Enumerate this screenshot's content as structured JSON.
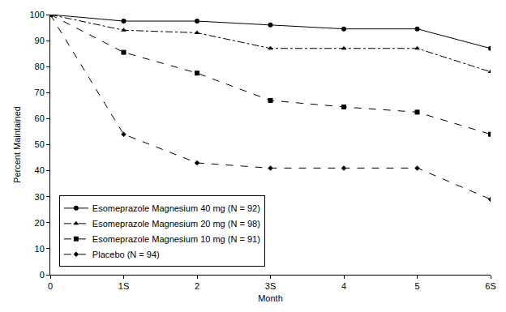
{
  "chart_data": {
    "type": "line",
    "x_label": "Month",
    "y_label": "Percent Maintained",
    "x": [
      0,
      1,
      2,
      3,
      4,
      5,
      6
    ],
    "xlim": [
      0,
      6
    ],
    "xticks": [
      0,
      {
        "value": 1,
        "label": "1S"
      },
      2,
      {
        "value": 3,
        "label": "3S"
      },
      4,
      5,
      {
        "value": 6,
        "label": "6S"
      }
    ],
    "ylim": [
      0,
      100
    ],
    "yticks": [
      0,
      10,
      20,
      30,
      40,
      50,
      60,
      70,
      80,
      90,
      100
    ],
    "grid": false,
    "legend": "lower left",
    "series": [
      {
        "name": "Esomeprazole Magnesium 40 mg (N = 92)",
        "color": "#000000",
        "line_style": "solid",
        "marker": "circle",
        "values": [
          100,
          97.5,
          97.5,
          96,
          94.5,
          94.5,
          87
        ]
      },
      {
        "name": "Esomeprazole Magnesium 20 mg (N = 98)",
        "color": "#000000",
        "line_style": "dashdot",
        "marker": "triangle",
        "values": [
          100,
          94,
          93,
          87,
          87,
          87,
          78
        ]
      },
      {
        "name": "Esomeprazole Magnesium 10 mg (N = 91)",
        "color": "#000000",
        "line_style": "dash",
        "marker": "square",
        "values": [
          100,
          85.5,
          77.5,
          67,
          64.5,
          62.5,
          54
        ]
      },
      {
        "name": "Placebo (N = 94)",
        "color": "#000000",
        "line_style": "dash",
        "marker": "diamond",
        "values": [
          100,
          54,
          43,
          41,
          41,
          41,
          29
        ]
      }
    ]
  }
}
